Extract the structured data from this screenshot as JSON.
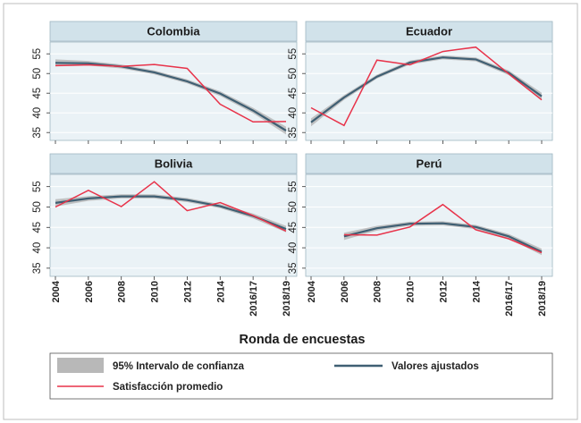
{
  "chart_data": {
    "type": "line",
    "layout": "2x2 facets",
    "x_categories": [
      "2004",
      "2006",
      "2008",
      "2010",
      "2012",
      "2014",
      "2016/17",
      "2018/19"
    ],
    "ylim": [
      33,
      58
    ],
    "yticks": [
      35,
      40,
      45,
      50,
      55
    ],
    "grid": true,
    "xlabel": "Ronda de encuestas",
    "ylabel": "",
    "legend_position": "bottom",
    "legend": {
      "ci": "95% Intervalo de confianza",
      "fitted": "Valores ajustados",
      "observed": "Satisfacción promedio"
    },
    "colors": {
      "observed": "#e8334a",
      "fitted": "#3f5f73",
      "ci_band": "#b8b8b8",
      "panel_header": "#d1e2ea",
      "plot_background": "#eaf2f6"
    },
    "panels": [
      {
        "title": "Colombia",
        "observed": [
          52.0,
          52.2,
          51.8,
          52.3,
          51.3,
          42.2,
          37.7,
          37.8
        ],
        "fitted": [
          52.7,
          52.6,
          51.8,
          50.3,
          48.0,
          44.9,
          40.6,
          35.5
        ],
        "ci_halfwidth": [
          0.9,
          0.6,
          0.5,
          0.5,
          0.5,
          0.6,
          0.7,
          1.0
        ]
      },
      {
        "title": "Ecuador",
        "observed": [
          41.3,
          36.8,
          53.4,
          52.2,
          55.6,
          56.7,
          49.9,
          43.3
        ],
        "fitted": [
          37.6,
          43.9,
          49.2,
          52.8,
          54.1,
          53.6,
          50.2,
          44.2
        ],
        "ci_halfwidth": [
          1.0,
          0.6,
          0.5,
          0.5,
          0.5,
          0.5,
          0.6,
          0.9
        ]
      },
      {
        "title": "Bolivia",
        "observed": [
          50.0,
          54.1,
          50.1,
          56.2,
          49.1,
          51.1,
          47.9,
          44.1
        ],
        "fitted": [
          51.0,
          52.1,
          52.6,
          52.6,
          51.7,
          50.2,
          47.8,
          44.6
        ],
        "ci_halfwidth": [
          0.9,
          0.6,
          0.5,
          0.5,
          0.5,
          0.5,
          0.6,
          0.8
        ]
      },
      {
        "title": "Perú",
        "observed": [
          null,
          43.2,
          43.1,
          45.1,
          50.6,
          44.4,
          42.2,
          38.8
        ],
        "fitted": [
          null,
          42.8,
          44.8,
          45.9,
          46.0,
          45.1,
          42.8,
          39.0
        ],
        "ci_halfwidth": [
          null,
          0.9,
          0.6,
          0.5,
          0.5,
          0.5,
          0.6,
          0.8
        ]
      }
    ]
  }
}
